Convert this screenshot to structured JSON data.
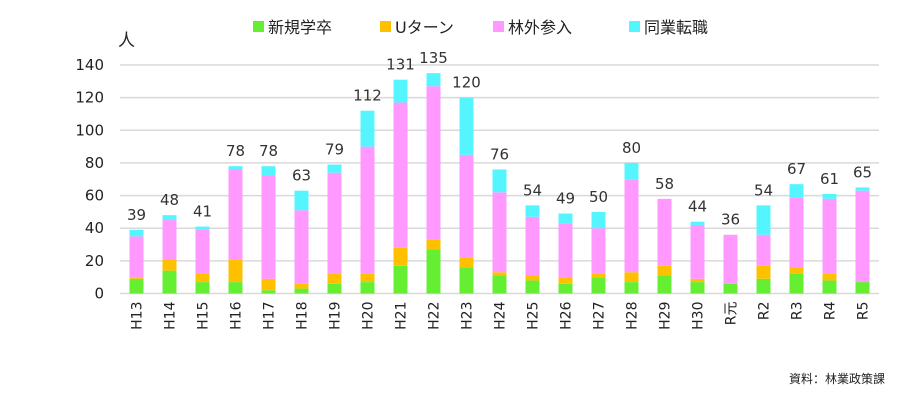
{
  "chart_data": {
    "type": "bar",
    "stacked": true,
    "ylabel": "人",
    "ylim": [
      0,
      140
    ],
    "yticks": [
      0,
      20,
      40,
      60,
      80,
      100,
      120,
      140
    ],
    "grid": true,
    "legend_position": "top",
    "categories": [
      "H13",
      "H14",
      "H15",
      "H16",
      "H17",
      "H18",
      "H19",
      "H20",
      "H21",
      "H22",
      "H23",
      "H24",
      "H25",
      "H26",
      "H27",
      "H28",
      "H29",
      "H30",
      "R元",
      "R2",
      "R3",
      "R4",
      "R5"
    ],
    "totals": [
      39,
      48,
      41,
      78,
      78,
      63,
      79,
      112,
      131,
      135,
      120,
      76,
      54,
      49,
      50,
      80,
      58,
      44,
      36,
      54,
      67,
      61,
      65
    ],
    "series": [
      {
        "name": "新規学卒",
        "color": "#66ee33",
        "values": [
          9,
          14,
          7,
          7,
          2,
          3,
          6,
          7,
          17,
          27,
          16,
          11,
          8,
          6,
          10,
          7,
          11,
          7,
          6,
          9,
          12,
          8,
          7
        ]
      },
      {
        "name": "Uターン",
        "color": "#ffc000",
        "values": [
          1,
          7,
          5,
          14,
          7,
          3,
          6,
          5,
          11,
          6,
          6,
          2,
          3,
          4,
          2,
          6,
          6,
          2,
          0,
          8,
          4,
          4,
          0
        ]
      },
      {
        "name": "林外参入",
        "color": "#ff99ff",
        "values": [
          25,
          24,
          27,
          55,
          63,
          45,
          62,
          78,
          89,
          94,
          63,
          49,
          36,
          33,
          28,
          57,
          41,
          33,
          30,
          19,
          43,
          46,
          56
        ]
      },
      {
        "name": "同業転職",
        "color": "#55f5ff",
        "values": [
          4,
          3,
          2,
          2,
          6,
          12,
          5,
          22,
          14,
          8,
          35,
          14,
          7,
          6,
          10,
          10,
          0,
          2,
          0,
          18,
          8,
          3,
          2
        ]
      }
    ],
    "source": "資料：林業政策課"
  }
}
